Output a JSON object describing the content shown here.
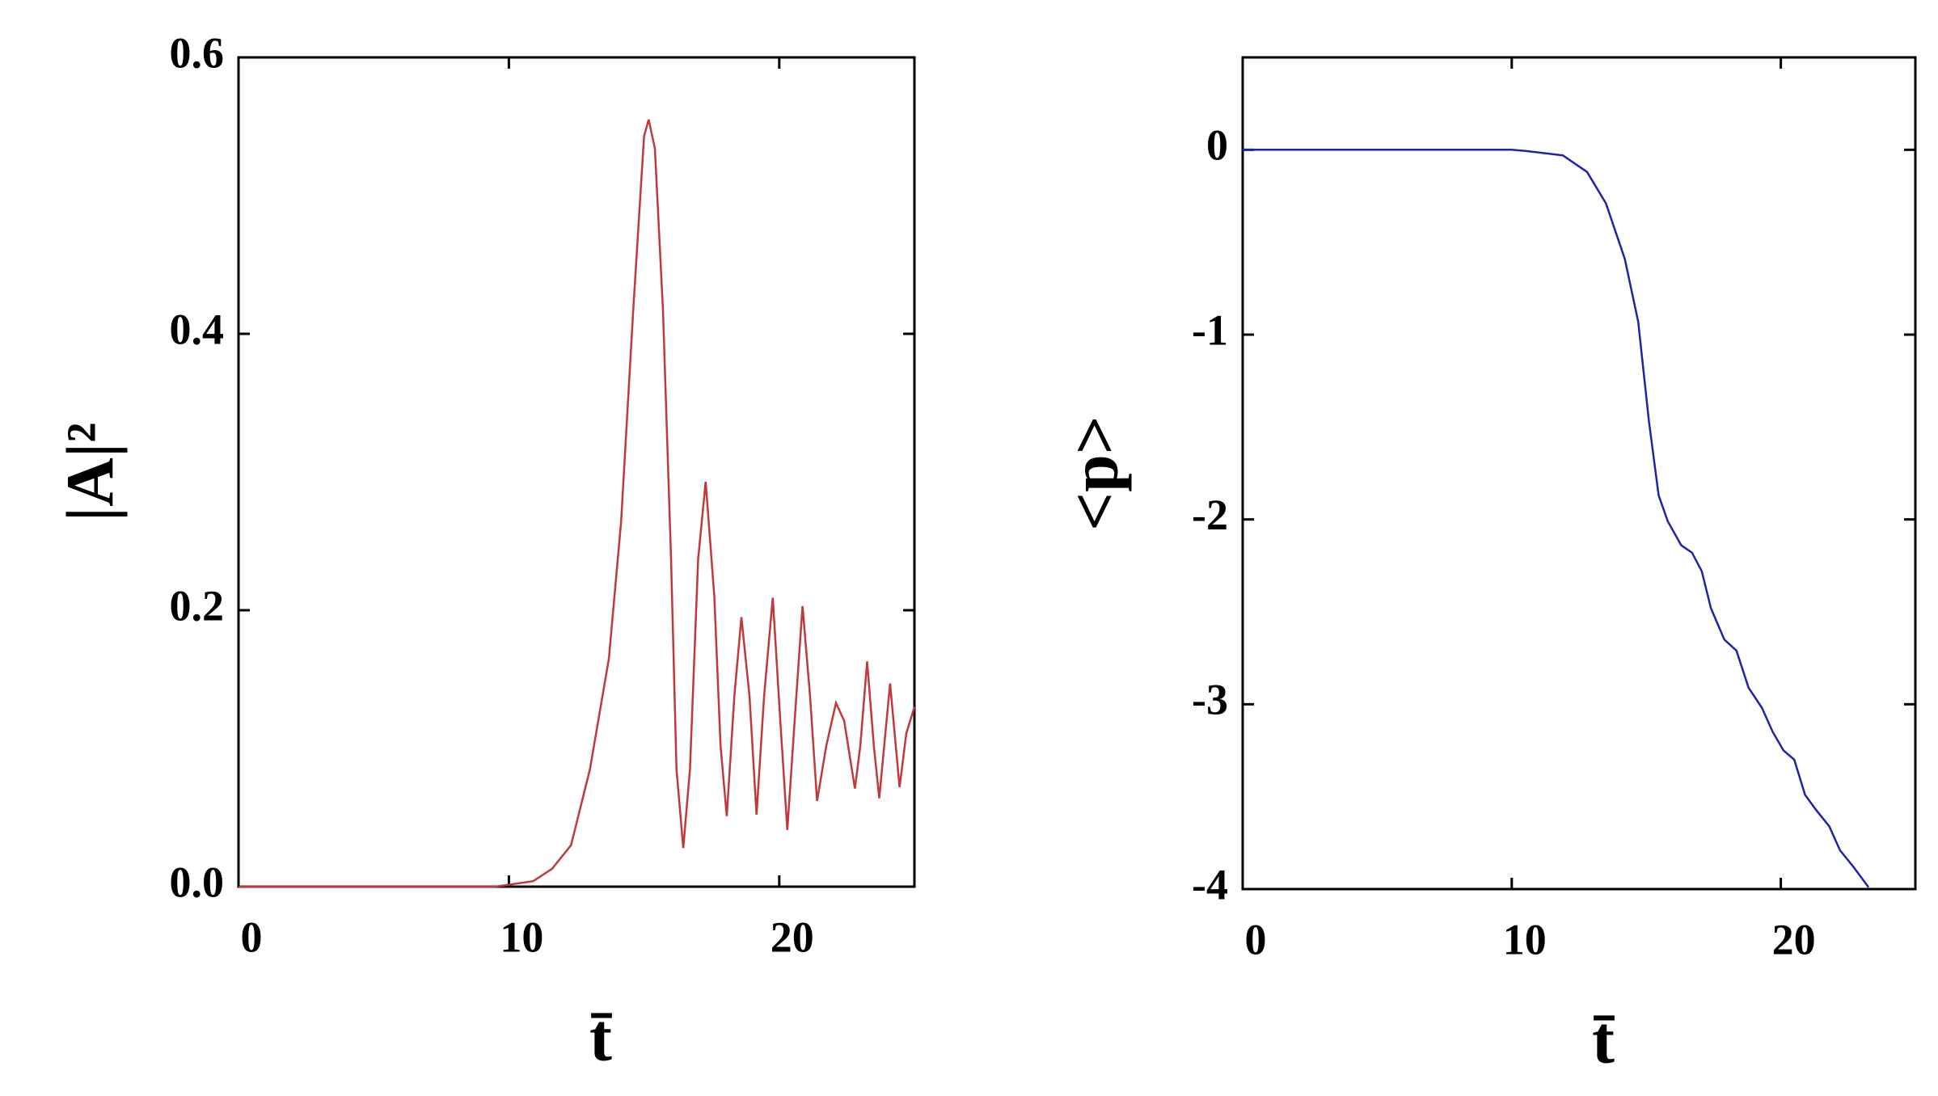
{
  "chart_data": [
    {
      "type": "line",
      "color": "#c0393b",
      "x_label": "t̄",
      "y_label": "|A|²",
      "xlim": [
        0,
        25
      ],
      "xticks": [
        0,
        10,
        20
      ],
      "ylim": [
        0,
        0.6
      ],
      "yticks": [
        {
          "value": 0,
          "label": "0.0"
        },
        0.2,
        0.4,
        0.6
      ],
      "x": [
        0,
        5,
        9.5,
        10.9,
        11.6,
        12.3,
        13.0,
        13.7,
        14.15,
        14.6,
        15.0,
        15.17,
        15.4,
        15.7,
        16.0,
        16.2,
        16.45,
        16.7,
        17.0,
        17.28,
        17.6,
        17.83,
        18.06,
        18.34,
        18.6,
        18.9,
        19.16,
        19.44,
        19.76,
        20.04,
        20.3,
        20.6,
        20.86,
        21.14,
        21.4,
        21.74,
        22.1,
        22.4,
        22.8,
        23.0,
        23.25,
        23.5,
        23.7,
        24.1,
        24.45,
        24.7,
        25.0
      ],
      "values": [
        0,
        0,
        0,
        0.004,
        0.013,
        0.03,
        0.085,
        0.165,
        0.264,
        0.417,
        0.543,
        0.555,
        0.534,
        0.417,
        0.237,
        0.085,
        0.028,
        0.085,
        0.237,
        0.293,
        0.21,
        0.102,
        0.051,
        0.138,
        0.195,
        0.138,
        0.052,
        0.138,
        0.209,
        0.12,
        0.041,
        0.129,
        0.203,
        0.138,
        0.062,
        0.102,
        0.133,
        0.12,
        0.071,
        0.102,
        0.163,
        0.102,
        0.064,
        0.147,
        0.072,
        0.111,
        0.13
      ]
    },
    {
      "type": "line",
      "color": "#1f23a8",
      "x_label": "t̄",
      "y_label": "<p>",
      "xlim": [
        0,
        25
      ],
      "xticks": [
        0,
        10,
        20
      ],
      "ylim": [
        -4,
        0.5
      ],
      "yticks": [
        -4,
        -3,
        -2,
        -1,
        0
      ],
      "x": [
        0,
        5,
        10,
        10.55,
        11.9,
        12.8,
        13.5,
        14.2,
        14.7,
        15.1,
        15.46,
        15.8,
        16.3,
        16.7,
        17.06,
        17.4,
        17.9,
        18.35,
        18.8,
        19.3,
        19.7,
        20.1,
        20.5,
        20.9,
        21.3,
        21.8,
        22.2,
        22.7,
        23.26
      ],
      "values": [
        0,
        0,
        0,
        -0.007,
        -0.03,
        -0.12,
        -0.29,
        -0.59,
        -0.93,
        -1.47,
        -1.87,
        -2.01,
        -2.14,
        -2.18,
        -2.28,
        -2.48,
        -2.65,
        -2.71,
        -2.91,
        -3.02,
        -3.15,
        -3.25,
        -3.3,
        -3.49,
        -3.57,
        -3.66,
        -3.79,
        -3.88,
        -3.99
      ]
    }
  ]
}
